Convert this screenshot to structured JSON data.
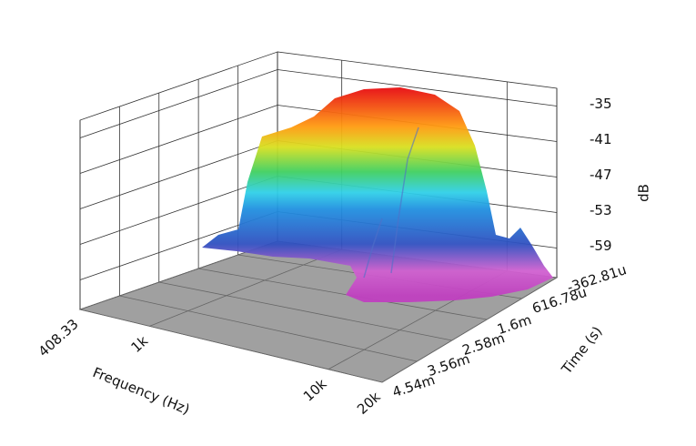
{
  "chart_data": {
    "type": "waterfall3d",
    "x_label": "Frequency (Hz)",
    "y_label": "Time (s)",
    "z_label": "dB",
    "xlog": true,
    "xlim": [
      408.33,
      20000
    ],
    "xticks": [
      408.33,
      {
        "value": 1000,
        "label": "1k"
      },
      {
        "value": 10000,
        "label": "10k"
      },
      {
        "value": 20000,
        "label": "20k"
      }
    ],
    "ylim": [
      -0.00036281,
      0.00454
    ],
    "yticks": [
      {
        "value": -0.00036281,
        "label": "-362.81u"
      },
      {
        "value": 0.00061678,
        "label": "616.78u"
      },
      {
        "value": 0.0016,
        "label": "1.6m"
      },
      {
        "value": 0.00258,
        "label": "2.58m"
      },
      {
        "value": 0.00356,
        "label": "3.56m"
      },
      {
        "value": 0.00454,
        "label": "4.54m"
      }
    ],
    "zlim": [
      -64,
      -32
    ],
    "zticks": [
      -35,
      -41,
      -47,
      -53,
      -59
    ],
    "grid": true
  }
}
